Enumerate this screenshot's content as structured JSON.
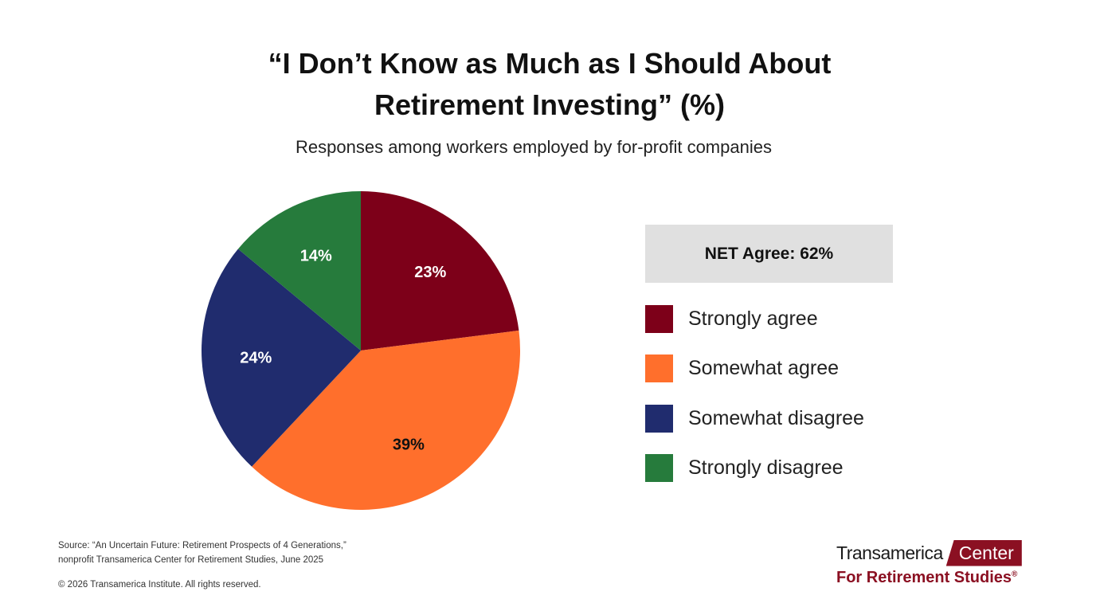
{
  "title_lines": [
    "“I Don’t Know as Much as I Should About",
    "Retirement Investing” (%)"
  ],
  "subtitle": "Responses among workers employed by for-profit companies",
  "net_agree": "NET Agree: 62%",
  "chart_data": {
    "type": "pie",
    "unit": "%",
    "slices": [
      {
        "label": "Strongly agree",
        "value": 23,
        "display": "23%",
        "color": "#7d0019"
      },
      {
        "label": "Somewhat agree",
        "value": 39,
        "display": "39%",
        "color": "#ff6f2c"
      },
      {
        "label": "Somewhat disagree",
        "value": 24,
        "display": "24%",
        "color": "#202c6e"
      },
      {
        "label": "Strongly disagree",
        "value": 14,
        "display": "14%",
        "color": "#267b3c"
      }
    ],
    "label_colors": [
      "#ffffff",
      "#111111",
      "#ffffff",
      "#ffffff"
    ],
    "legend_position": "right"
  },
  "source_lines": [
    "Source: “An Uncertain Future: Retirement Prospects of 4 Generations,”",
    "nonprofit Transamerica Center for Retirement Studies, June 2025"
  ],
  "copyright": "© 2026 Transamerica Institute. All rights reserved.",
  "logo": {
    "name": "Transamerica",
    "center": "Center",
    "sub": "For Retirement Studies",
    "mark": "®",
    "color": "#8b1022"
  }
}
